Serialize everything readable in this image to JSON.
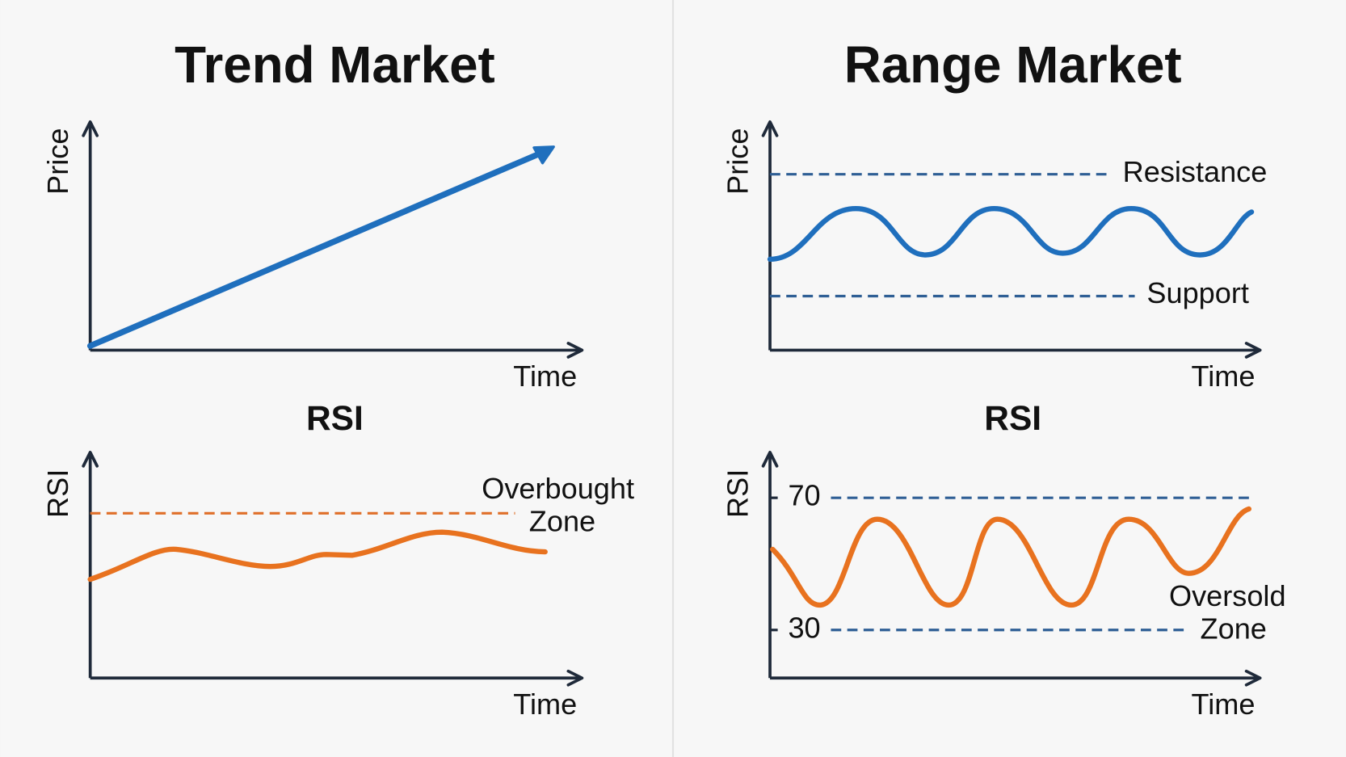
{
  "panels": [
    {
      "title": "Trend Market",
      "price_chart": {
        "y_label": "Price",
        "x_label": "Time"
      },
      "rsi_chart": {
        "title": "RSI",
        "y_label": "RSI",
        "x_label": "Time",
        "annotation": [
          "Overbought",
          "Zone"
        ]
      }
    },
    {
      "title": "Range Market",
      "price_chart": {
        "y_label": "Price",
        "x_label": "Time",
        "resistance_label": "Resistance",
        "support_label": "Support"
      },
      "rsi_chart": {
        "title": "RSI",
        "y_label": "RSI",
        "x_label": "Time",
        "levels": [
          70,
          30
        ],
        "annotation": [
          "Oversold",
          "Zone"
        ]
      }
    }
  ]
}
